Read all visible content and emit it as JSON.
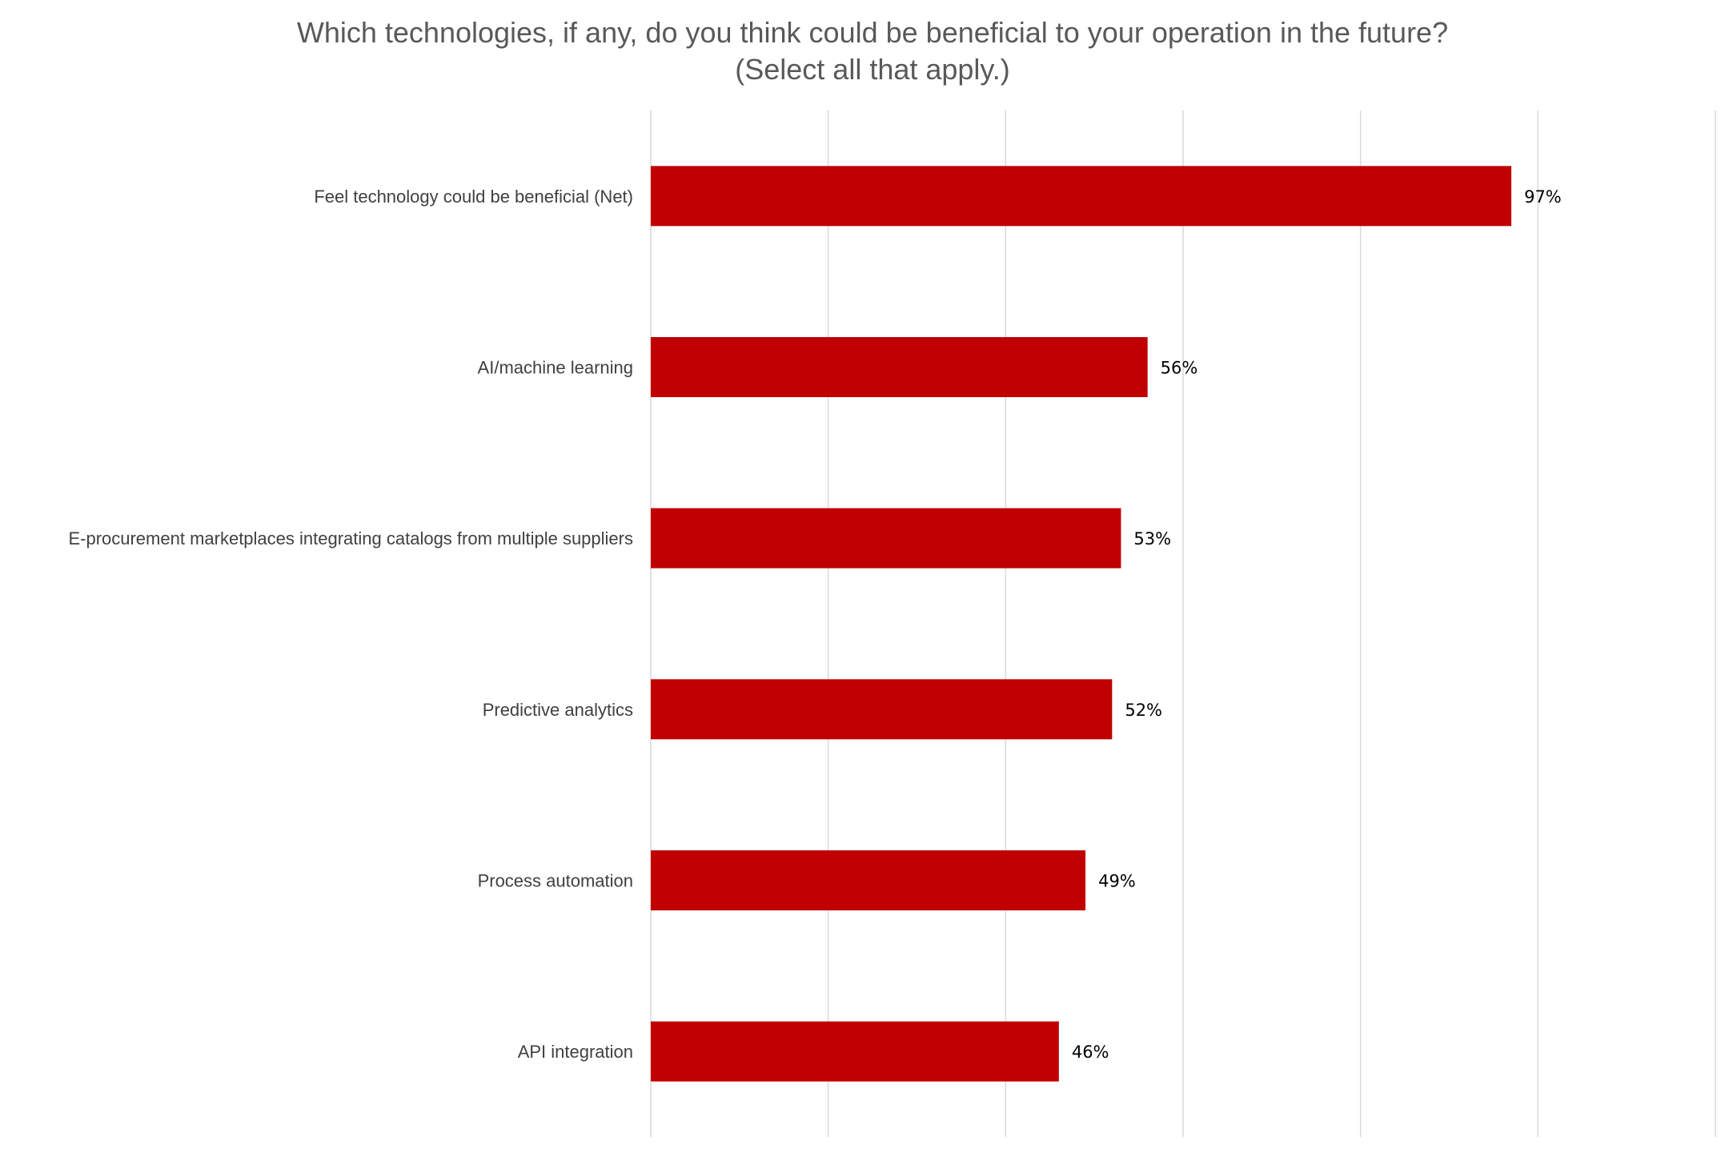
{
  "chart_data": {
    "type": "bar",
    "orientation": "horizontal",
    "title_line1": "Which technologies, if any, do you think could be beneficial to your operation in the future?",
    "title_line2": "(Select all that apply.)",
    "categories": [
      "Feel technology could be beneficial (Net)",
      "AI/machine learning",
      "E-procurement marketplaces integrating catalogs from multiple suppliers",
      "Predictive analytics",
      "Process automation",
      "API integration"
    ],
    "values": [
      97,
      56,
      53,
      52,
      49,
      46
    ],
    "data_labels": [
      "97%",
      "56%",
      "53%",
      "52%",
      "49%",
      "46%"
    ],
    "xlim": [
      0,
      120
    ],
    "grid_step": 20,
    "grid": true,
    "x_tick_labels_shown": false,
    "bar_color": "#C00000",
    "grid_color": "#D9D9D9"
  }
}
